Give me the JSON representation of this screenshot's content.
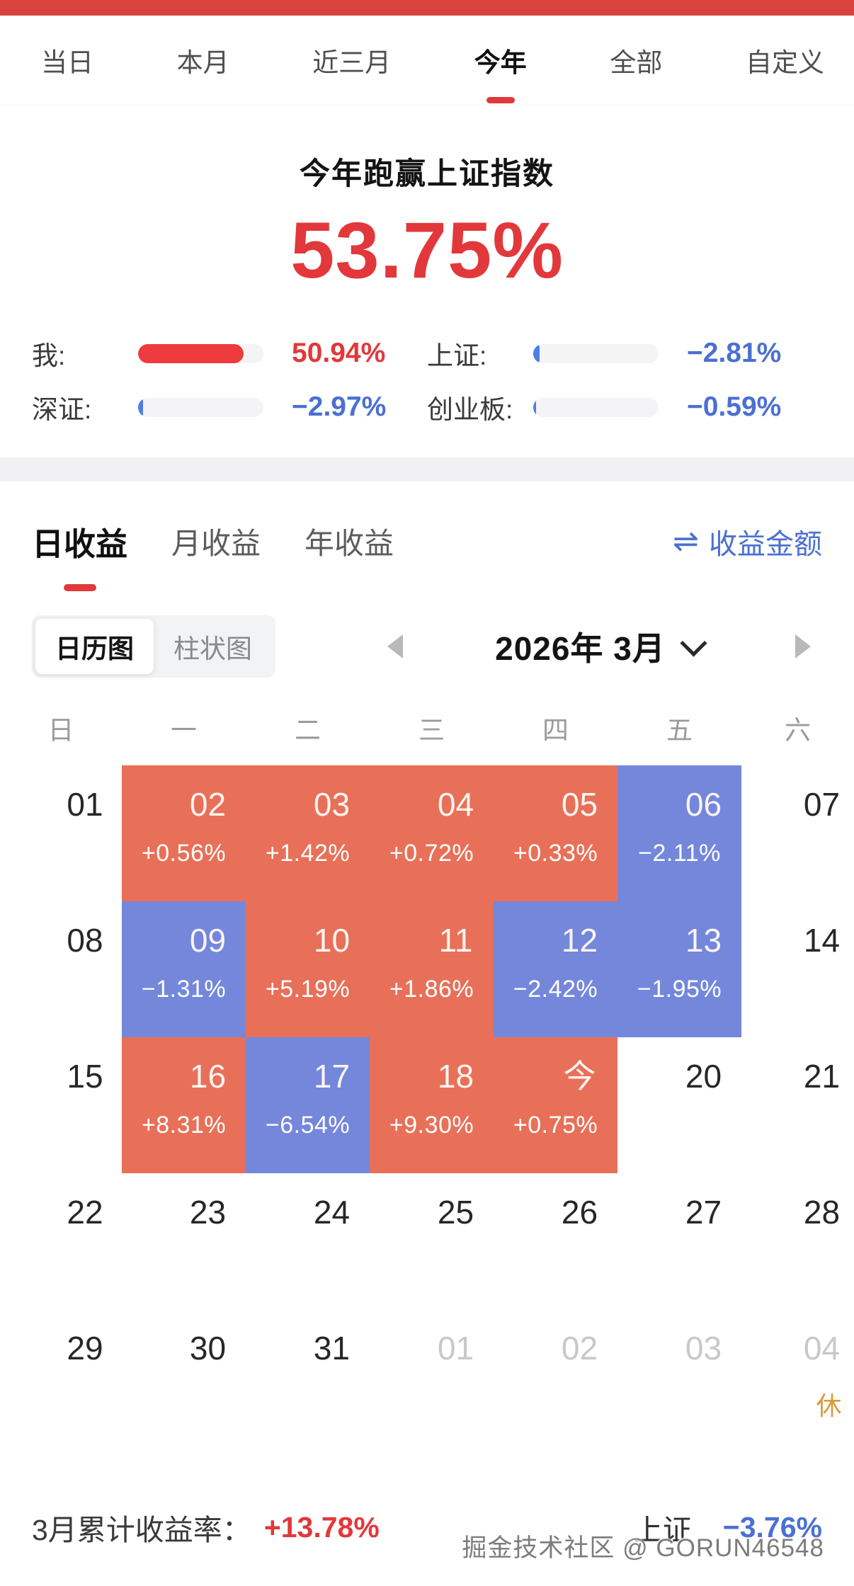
{
  "colors": {
    "brand_red": "#d9423f",
    "accent_red": "#e2383b",
    "bar_fill_red": "#ee3b3d",
    "bar_fill_blue": "#4d7ee8",
    "blue_text": "#4b70d3",
    "up_cell": "#e87058",
    "down_cell": "#7487db",
    "holiday": "#d89a3c"
  },
  "range_tabs": {
    "active_index": 3,
    "items": [
      {
        "label": "当日"
      },
      {
        "label": "本月"
      },
      {
        "label": "近三月"
      },
      {
        "label": "今年"
      },
      {
        "label": "全部"
      },
      {
        "label": "自定义"
      }
    ]
  },
  "hero": {
    "title": "今年跑赢上证指数",
    "value": "53.75%"
  },
  "benchmarks": [
    {
      "label": "我:",
      "value": "50.94%",
      "trend": "up",
      "bar_pct": 84
    },
    {
      "label": "上证:",
      "value": "−2.81%",
      "trend": "down",
      "bar_pct": 5
    },
    {
      "label": "深证:",
      "value": "−2.97%",
      "trend": "down",
      "bar_pct": 4
    },
    {
      "label": "创业板:",
      "value": "−0.59%",
      "trend": "down",
      "bar_pct": 2
    }
  ],
  "returns_tabs": {
    "active_index": 0,
    "items": [
      {
        "label": "日收益"
      },
      {
        "label": "月收益"
      },
      {
        "label": "年收益"
      }
    ],
    "amount_toggle": {
      "icon_glyph": "⇌",
      "label": "收益金额"
    }
  },
  "view_switch": {
    "active_index": 0,
    "options": [
      {
        "label": "日历图"
      },
      {
        "label": "柱状图"
      }
    ]
  },
  "month_nav": {
    "label": "2026年 3月"
  },
  "calendar": {
    "weekdays": [
      "日",
      "一",
      "二",
      "三",
      "四",
      "五",
      "六"
    ],
    "weeks": [
      [
        {
          "day": "01"
        },
        {
          "day": "02",
          "pct": "+0.56%",
          "trend": "up"
        },
        {
          "day": "03",
          "pct": "+1.42%",
          "trend": "up"
        },
        {
          "day": "04",
          "pct": "+0.72%",
          "trend": "up"
        },
        {
          "day": "05",
          "pct": "+0.33%",
          "trend": "up"
        },
        {
          "day": "06",
          "pct": "−2.11%",
          "trend": "down"
        },
        {
          "day": "07"
        }
      ],
      [
        {
          "day": "08"
        },
        {
          "day": "09",
          "pct": "−1.31%",
          "trend": "down"
        },
        {
          "day": "10",
          "pct": "+5.19%",
          "trend": "up"
        },
        {
          "day": "11",
          "pct": "+1.86%",
          "trend": "up"
        },
        {
          "day": "12",
          "pct": "−2.42%",
          "trend": "down"
        },
        {
          "day": "13",
          "pct": "−1.95%",
          "trend": "down"
        },
        {
          "day": "14"
        }
      ],
      [
        {
          "day": "15"
        },
        {
          "day": "16",
          "pct": "+8.31%",
          "trend": "up"
        },
        {
          "day": "17",
          "pct": "−6.54%",
          "trend": "down"
        },
        {
          "day": "18",
          "pct": "+9.30%",
          "trend": "up"
        },
        {
          "day": "今",
          "pct": "+0.75%",
          "trend": "up"
        },
        {
          "day": "20"
        },
        {
          "day": "21"
        }
      ],
      [
        {
          "day": "22"
        },
        {
          "day": "23"
        },
        {
          "day": "24"
        },
        {
          "day": "25"
        },
        {
          "day": "26"
        },
        {
          "day": "27"
        },
        {
          "day": "28"
        }
      ],
      [
        {
          "day": "29"
        },
        {
          "day": "30"
        },
        {
          "day": "31"
        },
        {
          "day": "01",
          "muted": true
        },
        {
          "day": "02",
          "muted": true
        },
        {
          "day": "03",
          "muted": true
        },
        {
          "day": "04",
          "muted": true,
          "badge": "休"
        }
      ]
    ]
  },
  "footer": {
    "label": "3月累计收益率：",
    "value": "+13.78%",
    "benchmark_label": "上证",
    "benchmark_value": "−3.76%"
  },
  "watermark": "掘金技术社区 @ GORUN46548"
}
